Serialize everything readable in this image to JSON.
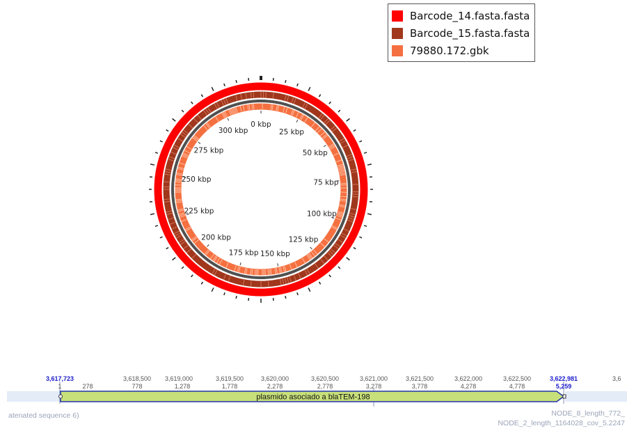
{
  "legend": {
    "items": [
      {
        "label": "Barcode_14.fasta.fasta",
        "color": "#ff0000"
      },
      {
        "label": "Barcode_15.fasta.fasta",
        "color": "#a0371c"
      },
      {
        "label": "79880.172.gbk",
        "color": "#f57040"
      }
    ]
  },
  "ring_map": {
    "ticks": [
      "0 kbp",
      "25 kbp",
      "50 kbp",
      "75 kbp",
      "100 kbp",
      "125 kbp",
      "150 kbp",
      "175 kbp",
      "200 kbp",
      "225 kbp",
      "250 kbp",
      "275 kbp",
      "300 kbp"
    ],
    "colors": {
      "outer": "#ff0000",
      "middle": "#a0371c",
      "backbone": "#505050",
      "inner": "#f57040"
    }
  },
  "track": {
    "start_coord": "3,617,723",
    "end_coord": "3,622,981",
    "next_coord_partial": "3,6",
    "top_ticks": [
      "3,618,500",
      "3,619,000",
      "3,619,500",
      "3,620,000",
      "3,620,500",
      "3,621,000",
      "3,621,500",
      "3,622,000",
      "3,622,500"
    ],
    "sub_ticks": [
      "278",
      "778",
      "1,278",
      "1,778",
      "2,278",
      "2,778",
      "3,278",
      "3,778",
      "4,278",
      "4,778"
    ],
    "start_sub": "1",
    "end_sub": "5,259",
    "feature_label": "plasmido asociado a blaTEM-198",
    "feature_color": "#c8e07a",
    "left_label": "atenated sequence 6)",
    "right_label_1": "NODE_8_length_772_",
    "right_label_2": "NODE_2_length_1164028_cov_5.2247"
  }
}
